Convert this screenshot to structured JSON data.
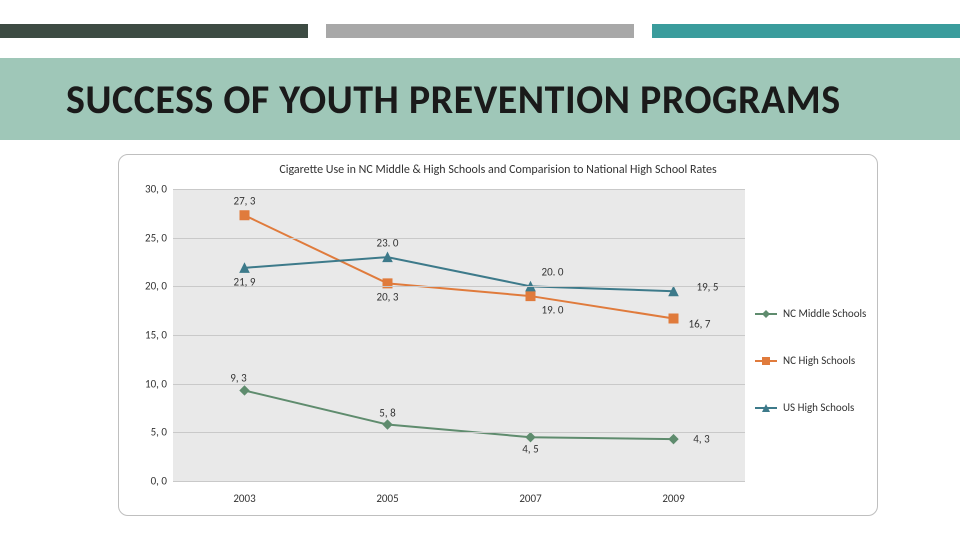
{
  "accents": {
    "colors": [
      "#3d4b43",
      "#a8a8a8",
      "#3a9c9c"
    ],
    "height": 14
  },
  "title_band": {
    "background": "#9fc7b8",
    "text": "SUCCESS OF YOUTH PREVENTION PROGRAMS",
    "text_color": "#1a1a1a",
    "font_size": 40
  },
  "chart": {
    "type": "line",
    "title": "Cigarette Use in NC Middle & High Schools and Comparision to National High School Rates",
    "title_fontsize": 12,
    "background": "#e9e9e9",
    "frame_border": "#bfbfbf",
    "grid_color": "#c9c9c9",
    "ylim": [
      0,
      30
    ],
    "ytick_step": 5,
    "y_tick_labels": [
      "0, 0",
      "5, 0",
      "10, 0",
      "15, 0",
      "20, 0",
      "25, 0",
      "30, 0"
    ],
    "x_categories": [
      "2003",
      "2005",
      "2007",
      "2009"
    ],
    "series": [
      {
        "name": "NC Middle Schools",
        "color": "#5f8c6e",
        "marker": "diamond",
        "values": [
          9.3,
          5.8,
          4.5,
          4.3
        ],
        "labels": [
          "9, 3",
          "5, 8",
          "4, 5",
          "4, 3"
        ],
        "label_offsets": [
          [
            -6,
            -12
          ],
          [
            0,
            -12
          ],
          [
            0,
            12
          ],
          [
            28,
            0
          ]
        ],
        "line_width": 2
      },
      {
        "name": "NC High Schools",
        "color": "#e07b3c",
        "marker": "square",
        "values": [
          27.3,
          20.3,
          19.0,
          16.7
        ],
        "labels": [
          "27, 3",
          "20, 3",
          "19. 0",
          "16, 7"
        ],
        "label_offsets": [
          [
            0,
            -14
          ],
          [
            0,
            14
          ],
          [
            22,
            14
          ],
          [
            26,
            6
          ]
        ],
        "line_width": 2
      },
      {
        "name": "US High Schools",
        "color": "#3d7a8a",
        "marker": "triangle",
        "values": [
          21.9,
          23.0,
          20.0,
          19.5
        ],
        "labels": [
          "21, 9",
          "23. 0",
          "20. 0",
          "19, 5"
        ],
        "label_offsets": [
          [
            0,
            14
          ],
          [
            0,
            -14
          ],
          [
            22,
            -14
          ],
          [
            34,
            -4
          ]
        ],
        "line_width": 2
      }
    ],
    "legend": {
      "items": [
        {
          "label": "NC Middle Schools",
          "series": 0
        },
        {
          "label": "NC High Schools",
          "series": 1
        },
        {
          "label": "US High Schools",
          "series": 2
        }
      ]
    }
  }
}
